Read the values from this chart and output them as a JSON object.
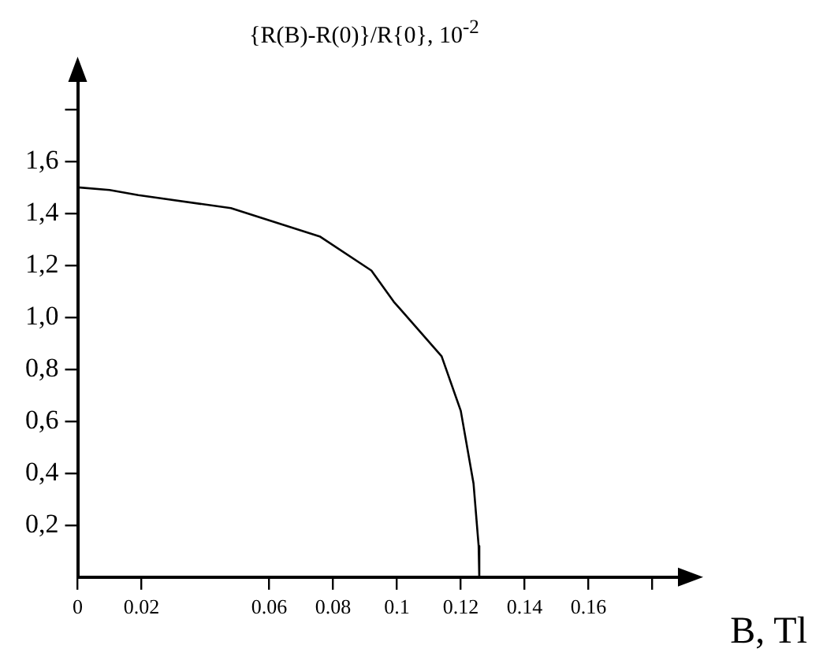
{
  "chart_data": {
    "type": "line",
    "ylabel": "{R(B)-R(0)}/R{0}, 10$^{-2}$",
    "xlabel": "B, Tl",
    "xlim": [
      0,
      0.19
    ],
    "ylim": [
      0,
      1.93
    ],
    "xticks": [
      0,
      0.02,
      0.06,
      0.08,
      0.1,
      0.12,
      0.14,
      0.16,
      {
        "value": 0.18,
        "label": null
      }
    ],
    "yticks": [
      {
        "value": 0.2,
        "label": "0,2"
      },
      {
        "value": 0.4,
        "label": "0,4"
      },
      {
        "value": 0.6,
        "label": "0,6"
      },
      {
        "value": 0.8,
        "label": "0,8"
      },
      {
        "value": 1.0,
        "label": "1,0"
      },
      {
        "value": 1.2,
        "label": "1,2"
      },
      {
        "value": 1.4,
        "label": "1,4"
      },
      {
        "value": 1.6,
        "label": "1,6"
      },
      {
        "value": 1.8,
        "label": null
      }
    ],
    "x": [
      0,
      0.01,
      0.019,
      0.048,
      0.076,
      0.092,
      0.099,
      0.114,
      0.12,
      0.124,
      0.1256,
      0.1258
    ],
    "series": [
      {
        "color": "#000000",
        "values": [
          1.5,
          1.49,
          1.47,
          1.42,
          1.31,
          1.18,
          1.06,
          0.85,
          0.64,
          0.36,
          0.12,
          0
        ]
      }
    ],
    "grid": false,
    "legend": false,
    "marker": "none",
    "line_style": "solid"
  }
}
